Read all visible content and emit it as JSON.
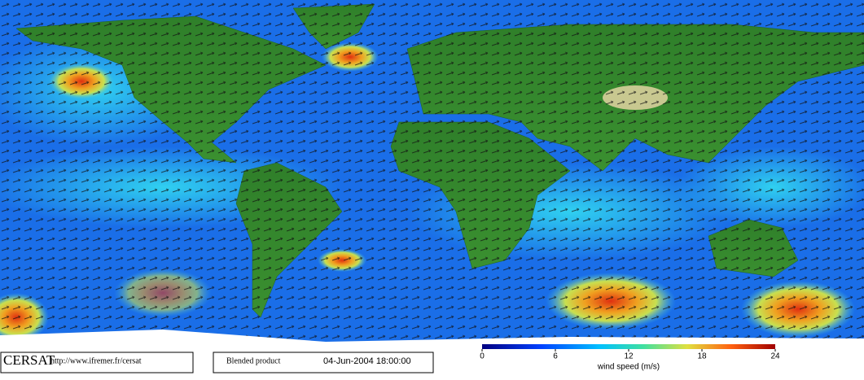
{
  "footer": {
    "logo": "CERSAT",
    "url": "http://www.ifremer.fr/cersat",
    "product": "Blended product",
    "date": "04-Jun-2004 18:00:00"
  },
  "colorbar": {
    "label": "wind speed (m/s)",
    "range": [
      0,
      24
    ],
    "ticks": [
      0,
      6,
      12,
      18,
      24
    ]
  }
}
